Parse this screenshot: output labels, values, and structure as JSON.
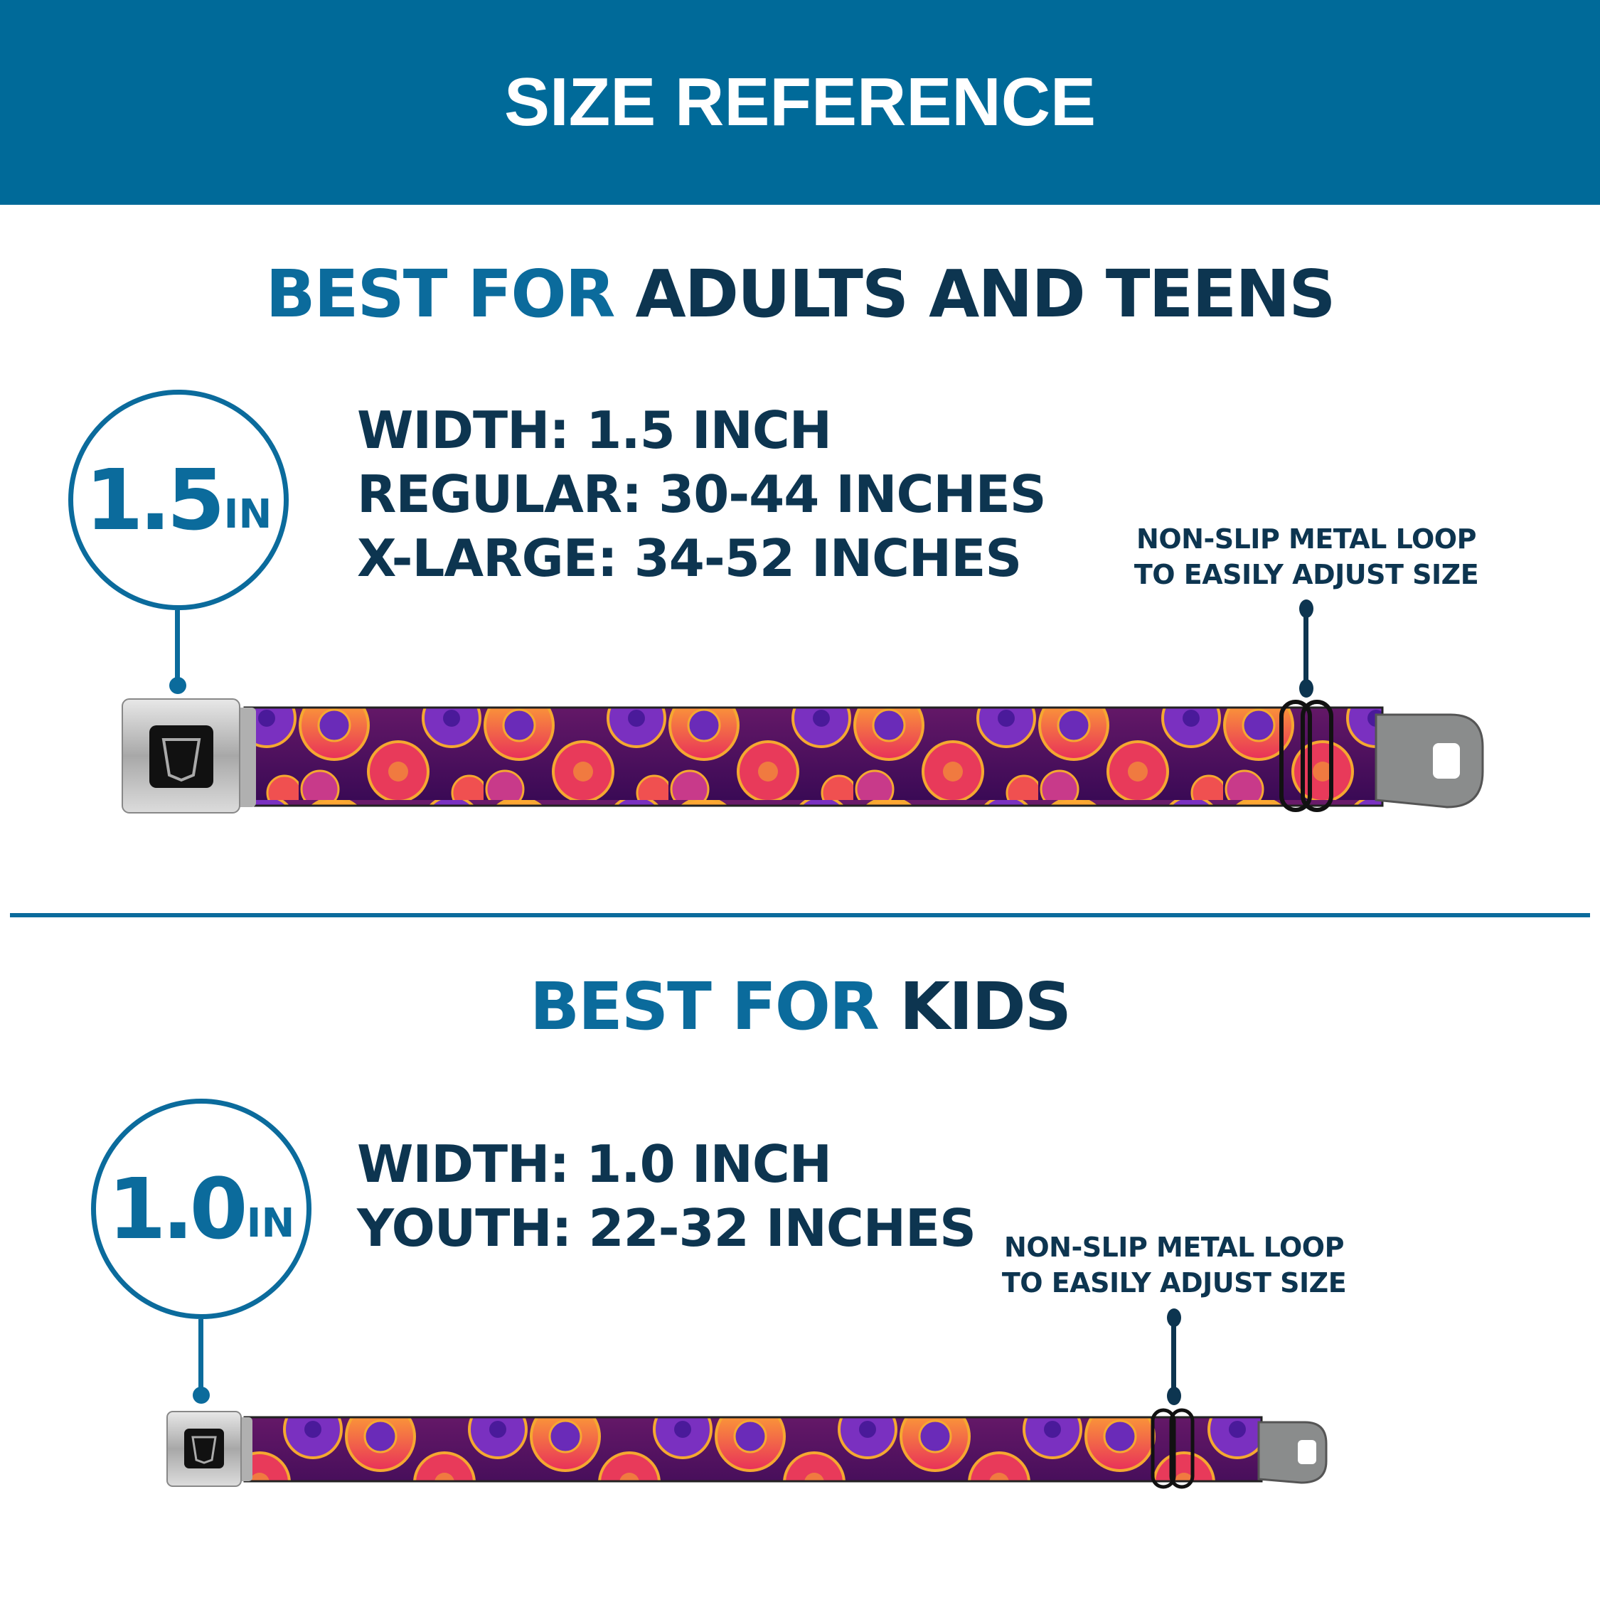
{
  "header": {
    "title": "SIZE REFERENCE"
  },
  "colors": {
    "header_bg": "#006a99",
    "accent_blue": "#0b6b9c",
    "dark_navy": "#0d3550",
    "strap_bg": "#4a1060"
  },
  "adults": {
    "heading_accent": "BEST FOR",
    "heading_main": "ADULTS AND TEENS",
    "badge_value": "1.5",
    "badge_unit": "IN",
    "specs": [
      "WIDTH: 1.5 INCH",
      "REGULAR: 30-44 INCHES",
      "X-LARGE: 34-52 INCHES"
    ],
    "annotation": [
      "NON-SLIP METAL LOOP",
      "TO EASILY ADJUST SIZE"
    ],
    "buckle_logo": "BD"
  },
  "kids": {
    "heading_accent": "BEST FOR",
    "heading_main": "KIDS",
    "badge_value": "1.0",
    "badge_unit": "IN",
    "specs": [
      "WIDTH: 1.0 INCH",
      "YOUTH: 22-32 INCHES"
    ],
    "annotation": [
      "NON-SLIP METAL LOOP",
      "TO EASILY ADJUST SIZE"
    ],
    "buckle_logo": "BD"
  }
}
